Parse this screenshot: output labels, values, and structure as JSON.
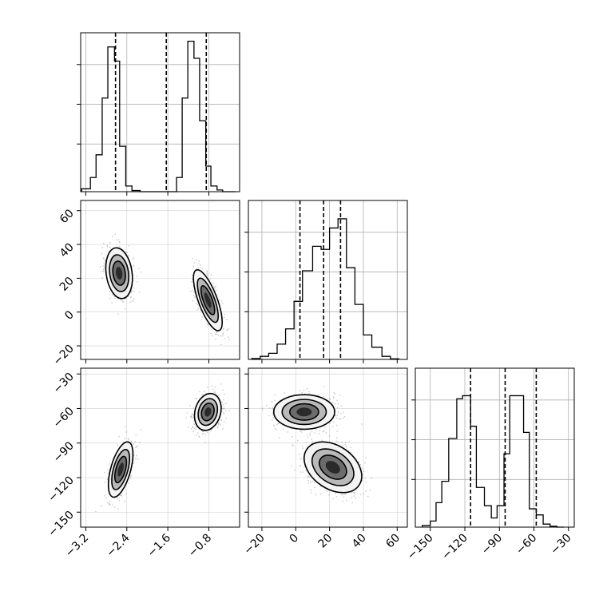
{
  "chart_data": {
    "type": "corner",
    "parameters": [
      "",
      "",
      ""
    ],
    "quantiles": [
      0.16,
      0.5,
      0.84
    ],
    "ranges": {
      "p0": [
        -3.3,
        -0.2
      ],
      "p1": [
        -28,
        66
      ],
      "p2": [
        -163,
        -25
      ]
    },
    "ticks": {
      "p0": [
        -3.2,
        -2.4,
        -1.6,
        -0.8
      ],
      "p1": [
        -20,
        0,
        20,
        40,
        60
      ],
      "p2": [
        -150,
        -120,
        -90,
        -60,
        -30
      ]
    },
    "tick_labels": {
      "p0": [
        "−3.2",
        "−2.4",
        "−1.6",
        "−0.8"
      ],
      "p1": [
        "−20",
        "0",
        "20",
        "40",
        "60"
      ],
      "p2": [
        "−150",
        "−120",
        "−90",
        "−60",
        "−30"
      ]
    },
    "grid": true,
    "histograms": [
      {
        "parameter": "p0",
        "bin_edges": [
          -3.28,
          -3.11,
          -3.0,
          -2.88,
          -2.77,
          -2.64,
          -2.54,
          -2.42,
          -2.3,
          -2.14,
          -1.93,
          -1.43,
          -1.32,
          -1.21,
          -1.09,
          -0.98,
          -0.86,
          -0.76,
          -0.64,
          -0.53,
          -0.4,
          -0.28
        ],
        "counts": [
          1,
          5,
          13,
          33,
          51,
          46,
          16,
          2,
          0.4,
          0,
          0,
          5,
          33,
          53,
          47,
          25,
          9,
          2,
          0.6,
          0,
          0
        ],
        "ymax": 56,
        "quantile_values": [
          -2.62,
          -1.63,
          -0.85
        ]
      },
      {
        "parameter": "p1",
        "bin_edges": [
          -26,
          -21,
          -16,
          -11,
          -6,
          -1,
          4,
          10,
          15,
          20,
          25,
          30,
          35,
          40,
          45,
          51,
          56,
          61
        ],
        "counts": [
          0.3,
          1,
          2,
          5,
          10,
          19,
          29,
          37,
          36,
          43,
          46,
          30,
          18,
          8,
          4,
          1,
          0.2
        ],
        "ymax": 52,
        "quantile_values": [
          2.5,
          16.5,
          26.5
        ]
      },
      {
        "parameter": "p2",
        "bin_edges": [
          -157,
          -150,
          -145,
          -140,
          -134,
          -127,
          -122,
          -115,
          -110,
          -103,
          -97,
          -92,
          -86,
          -81,
          -75,
          -69,
          -64,
          -58,
          -52,
          -46,
          -40,
          -34
        ],
        "counts": [
          0.5,
          2,
          8,
          15,
          29,
          42,
          43,
          33,
          13,
          7,
          3,
          7,
          24,
          43,
          43,
          31,
          6,
          4,
          1,
          0.3,
          0
        ],
        "ymax": 52,
        "quantile_values": [
          -115,
          -85,
          -58
        ]
      }
    ],
    "scatter_panels": [
      {
        "x": "p0",
        "y": "p1",
        "clusters": [
          {
            "center": [
              -2.55,
              23
            ],
            "spread": [
              0.13,
              7.5
            ],
            "rho": -0.2
          },
          {
            "center": [
              -0.82,
              7
            ],
            "spread": [
              0.14,
              9
            ],
            "rho": -0.72
          }
        ]
      },
      {
        "x": "p0",
        "y": "p2",
        "clusters": [
          {
            "center": [
              -2.52,
              -113
            ],
            "spread": [
              0.12,
              12
            ],
            "rho": 0.55
          },
          {
            "center": [
              -0.82,
              -63
            ],
            "spread": [
              0.13,
              8
            ],
            "rho": 0.2
          }
        ]
      },
      {
        "x": "p1",
        "y": "p2",
        "clusters": [
          {
            "center": [
              5,
              -63
            ],
            "spread": [
              9,
              7.5
            ],
            "rho": 0.0
          },
          {
            "center": [
              22,
              -111
            ],
            "spread": [
              8.5,
              11
            ],
            "rho": -0.35
          }
        ]
      }
    ],
    "colors": {
      "hist_line": "#000000",
      "quantile_line": "#000000",
      "contour": "#000000",
      "contour_fill": [
        "#f4f4f4",
        "#b9b9b9",
        "#6c6c6c",
        "#1e1e1e"
      ],
      "scatter_point": "#9a9a9a",
      "grid": "#b0b0b0",
      "frame": "#000000",
      "background": "#ffffff"
    }
  }
}
